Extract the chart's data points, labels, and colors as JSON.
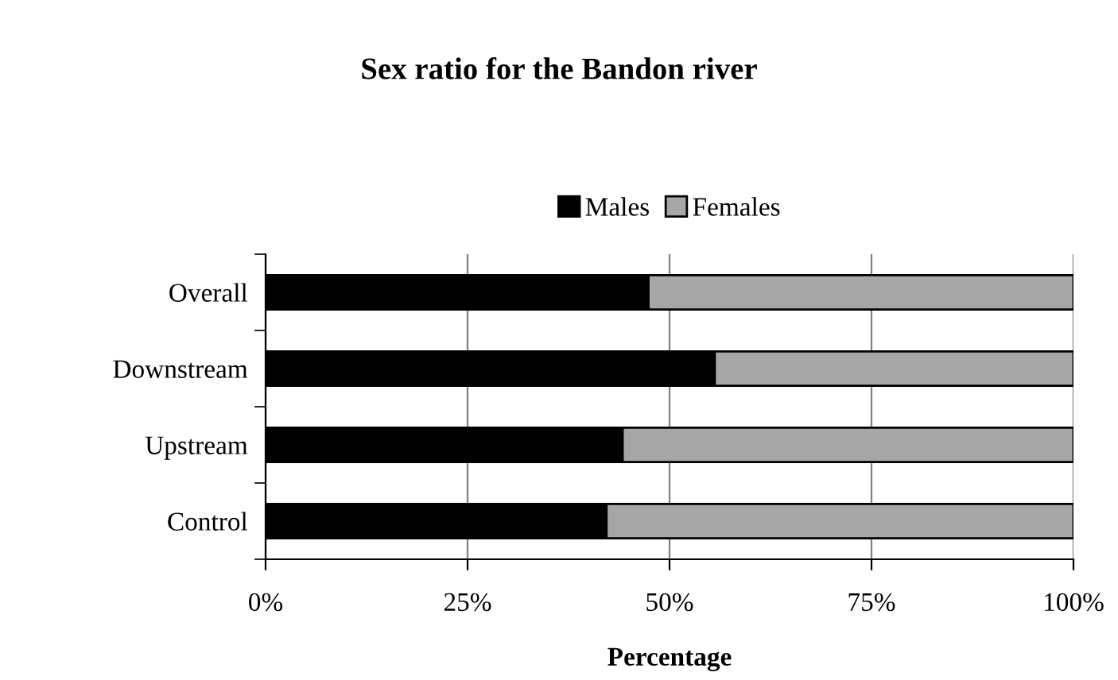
{
  "chart_data": {
    "type": "bar",
    "orientation": "horizontal",
    "stacked": true,
    "title": "Sex ratio for the Bandon river",
    "xlabel": "Percentage",
    "categories": [
      "Overall",
      "Downstream",
      "Upstream",
      "Control"
    ],
    "series": [
      {
        "name": "Males",
        "color": "#000000",
        "values": [
          47.4,
          55.6,
          44.2,
          42.2
        ]
      },
      {
        "name": "Females",
        "color": "#a6a6a6",
        "values": [
          52.6,
          44.4,
          55.8,
          57.8
        ]
      }
    ],
    "xlim": [
      0,
      100
    ],
    "xticks": [
      {
        "value": 0,
        "label": "0%"
      },
      {
        "value": 25,
        "label": "25%"
      },
      {
        "value": 50,
        "label": "50%"
      },
      {
        "value": 75,
        "label": "75%"
      },
      {
        "value": 100,
        "label": "100%"
      }
    ],
    "grid": "x",
    "legend": "top"
  }
}
